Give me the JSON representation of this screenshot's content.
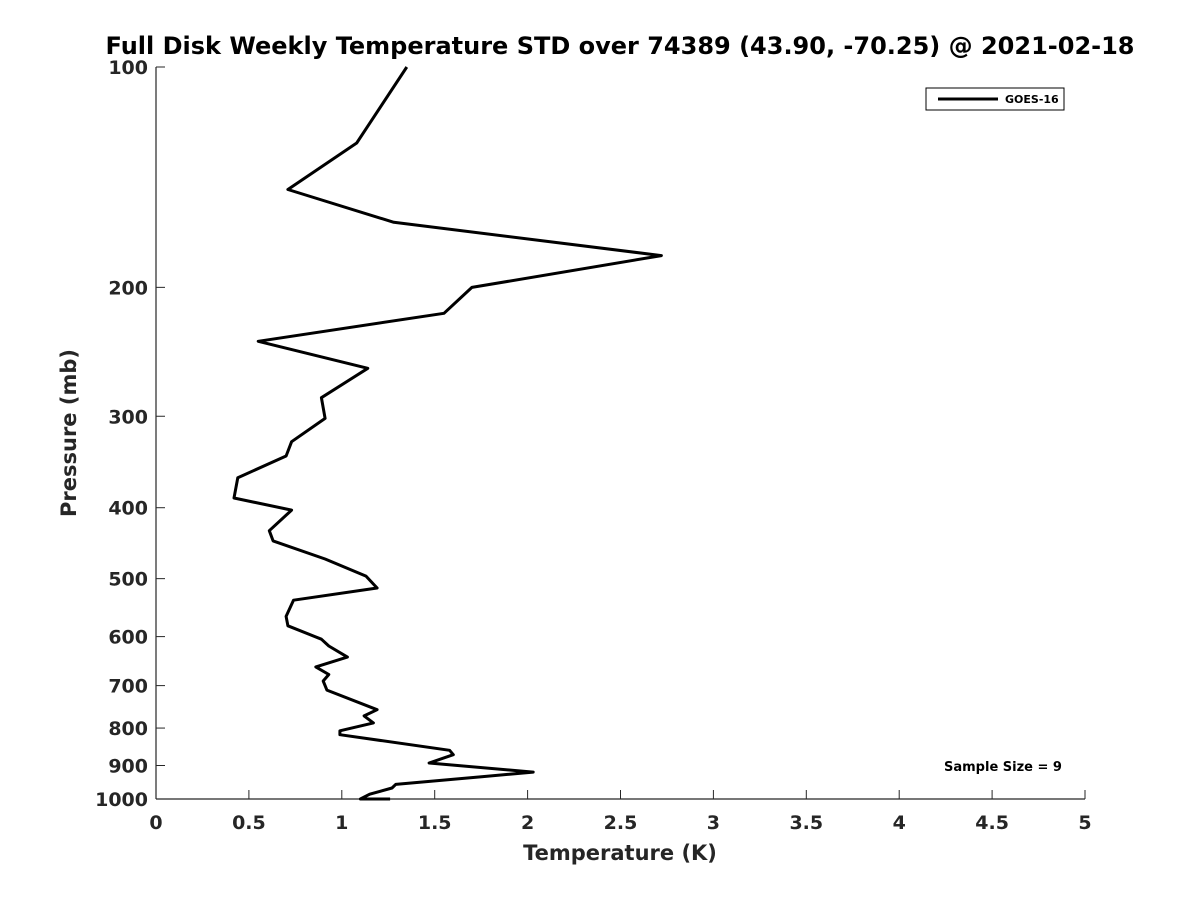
{
  "chart_data": {
    "type": "line",
    "title": "Full Disk Weekly Temperature STD over 74389 (43.90, -70.25) @ 2021-02-18",
    "xlabel": "Temperature (K)",
    "ylabel": "Pressure (mb)",
    "xlim": [
      0,
      5
    ],
    "ylim": [
      100,
      1000
    ],
    "y_scale": "log",
    "y_reversed": true,
    "x_ticks": [
      0,
      0.5,
      1,
      1.5,
      2,
      2.5,
      3,
      3.5,
      4,
      4.5,
      5
    ],
    "x_tick_labels": [
      "0",
      "0.5",
      "1",
      "1.5",
      "2",
      "2.5",
      "3",
      "3.5",
      "4",
      "4.5",
      "5"
    ],
    "y_ticks": [
      100,
      200,
      300,
      400,
      500,
      600,
      700,
      800,
      900,
      1000
    ],
    "y_tick_labels": [
      "100",
      "200",
      "300",
      "400",
      "500",
      "600",
      "700",
      "800",
      "900",
      "1000"
    ],
    "grid": false,
    "legend_position": "top-right",
    "annotation": "Sample Size = 9",
    "line_color": "#000000",
    "series": [
      {
        "name": "GOES-16",
        "x": [
          1.35,
          1.08,
          0.71,
          1.28,
          2.72,
          1.7,
          1.55,
          0.55,
          1.14,
          0.89,
          0.91,
          0.73,
          0.7,
          0.44,
          0.42,
          0.73,
          0.61,
          0.63,
          0.91,
          1.13,
          1.19,
          0.74,
          0.7,
          0.71,
          0.89,
          0.93,
          1.03,
          0.86,
          0.93,
          0.9,
          0.92,
          1.19,
          1.12,
          1.17,
          0.99,
          0.99,
          1.58,
          1.6,
          1.47,
          2.03,
          1.76,
          1.29,
          1.27,
          1.15,
          1.1,
          1.26
        ],
        "y": [
          100,
          127,
          147,
          163,
          181,
          200,
          217,
          237,
          258,
          283,
          302,
          325,
          340,
          364,
          388,
          403,
          430,
          444,
          470,
          496,
          515,
          535,
          563,
          580,
          605,
          618,
          640,
          660,
          676,
          690,
          710,
          755,
          770,
          787,
          807,
          817,
          858,
          870,
          893,
          919,
          932,
          955,
          966,
          985,
          1000,
          1000
        ]
      }
    ]
  }
}
